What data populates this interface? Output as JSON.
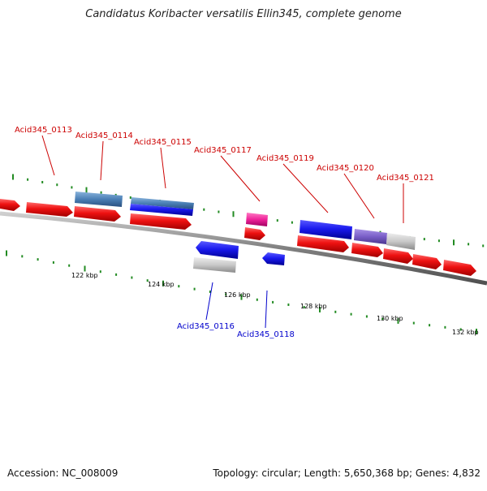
{
  "title": "Candidatus Koribacter versatilis Ellin345, complete genome",
  "footer": {
    "accession": "Accession: NC_008009",
    "summary": "Topology: circular; Length: 5,650,368 bp; Genes: 4,832"
  },
  "colors": {
    "label_top": "#cc0000",
    "label_bottom": "#0000cc",
    "leader_top": "#cc0000",
    "leader_bottom": "#0000cc",
    "tick": "#228b22",
    "red_gene": "#ee1111",
    "blue_gene": "#1a1aee",
    "steel_gene": "#4a7fb5",
    "pink_gene": "#ee2299",
    "purple_gene": "#7a5fc8",
    "grey_gene": "#c8c8c8"
  },
  "scale_labels": [
    "122 kbp",
    "124 kbp",
    "126 kbp",
    "128 kbp",
    "130 kbp",
    "132 kbp"
  ],
  "gene_labels_top": [
    "Acid345_0113",
    "Acid345_0114",
    "Acid345_0115",
    "Acid345_0117",
    "Acid345_0119",
    "Acid345_0120",
    "Acid345_0121"
  ],
  "gene_labels_bottom": [
    "Acid345_0116",
    "Acid345_0118"
  ]
}
